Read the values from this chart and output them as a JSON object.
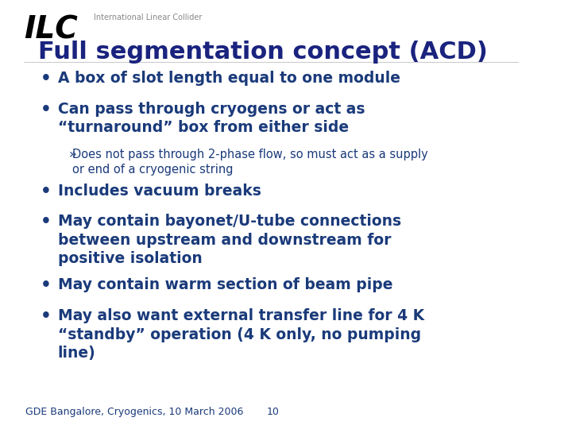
{
  "background_color": "#ffffff",
  "title": "Full segmentation concept (ACD)",
  "title_color": "#1a237e",
  "title_fontsize": 22,
  "ilc_text": "ILC",
  "ilc_subtitle": "International Linear Collider",
  "ilc_color": "#000000",
  "ilc_sub_color": "#888888",
  "bullet_color": "#1a3a7a",
  "bullet_fontsize": 13.5,
  "sub_bullet_fontsize": 10.5,
  "footer_text": "GDE Bangalore, Cryogenics, 10 March 2006",
  "footer_page": "10",
  "footer_color": "#1a3a7a",
  "footer_fontsize": 9,
  "bullets": [
    {
      "level": 1,
      "text": "A box of slot length equal to one module"
    },
    {
      "level": 1,
      "text": "Can pass through cryogens or act as\n“turnaround” box from either side"
    },
    {
      "level": 2,
      "text": "Does not pass through 2-phase flow, so must act as a supply\nor end of a cryogenic string"
    },
    {
      "level": 1,
      "text": "Includes vacuum breaks"
    },
    {
      "level": 1,
      "text": "May contain bayonet/U-tube connections\nbetween upstream and downstream for\npositive isolation"
    },
    {
      "level": 1,
      "text": "May contain warm section of beam pipe"
    },
    {
      "level": 1,
      "text": "May also want external transfer line for 4 K\n“standby” operation (4 K only, no pumping\nline)"
    }
  ]
}
